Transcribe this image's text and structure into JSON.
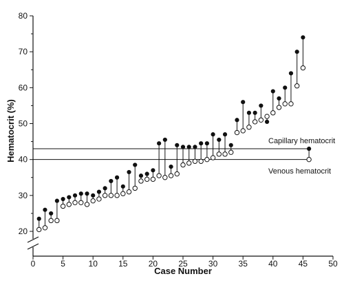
{
  "chart_data": {
    "type": "scatter",
    "title": "",
    "xlabel": "Case Number",
    "ylabel": "Hematocrit (%)",
    "xlim": [
      0,
      50
    ],
    "ylim": [
      20,
      80
    ],
    "y_axis_break": true,
    "x_ticks": [
      0,
      5,
      10,
      15,
      20,
      25,
      30,
      35,
      40,
      45,
      50
    ],
    "y_ticks": [
      20,
      30,
      40,
      50,
      60,
      70,
      80
    ],
    "grid": false,
    "series": [
      {
        "name": "Capillary hematocrit",
        "marker": "filled-circle",
        "x": [
          1,
          2,
          3,
          4,
          5,
          6,
          7,
          8,
          9,
          10,
          11,
          12,
          13,
          14,
          15,
          16,
          17,
          18,
          19,
          20,
          21,
          22,
          23,
          24,
          25,
          26,
          27,
          28,
          29,
          30,
          31,
          32,
          33,
          34,
          35,
          36,
          37,
          38,
          39,
          40,
          41,
          42,
          43,
          44,
          45,
          46
        ],
        "y": [
          23.5,
          26,
          25,
          28.5,
          29,
          29.5,
          30,
          30.5,
          30.5,
          30,
          31,
          32,
          34,
          35,
          32.5,
          36.5,
          38.5,
          35.5,
          36,
          37,
          44.5,
          45.5,
          38,
          44,
          43.5,
          43.5,
          43.5,
          44.5,
          44.5,
          47,
          45.5,
          47,
          44,
          51,
          56,
          53,
          53,
          55,
          50.5,
          59,
          57,
          60,
          64,
          70,
          74,
          43
        ]
      },
      {
        "name": "Venous hematocrit",
        "marker": "open-circle",
        "x": [
          1,
          2,
          3,
          4,
          5,
          6,
          7,
          8,
          9,
          10,
          11,
          12,
          13,
          14,
          15,
          16,
          17,
          18,
          19,
          20,
          21,
          22,
          23,
          24,
          25,
          26,
          27,
          28,
          29,
          30,
          31,
          32,
          33,
          34,
          35,
          36,
          37,
          38,
          39,
          40,
          41,
          42,
          43,
          44,
          45,
          46
        ],
        "y": [
          20.5,
          21,
          23,
          23,
          27,
          27.5,
          28,
          28,
          27.5,
          28.5,
          29,
          30,
          30,
          30,
          30.5,
          31,
          32,
          34,
          34.5,
          34.5,
          35.5,
          35,
          35.5,
          36,
          38.5,
          39,
          39.5,
          39.5,
          40,
          40.5,
          41.5,
          41.5,
          42,
          47.5,
          48,
          49,
          50.5,
          51,
          52,
          53,
          54.5,
          55.5,
          55.5,
          60.5,
          65.5,
          40
        ]
      }
    ],
    "reference_lines": [
      {
        "y": 43,
        "label": "Capillary hematocrit"
      },
      {
        "y": 40,
        "label": "Venous hematocrit"
      }
    ]
  }
}
